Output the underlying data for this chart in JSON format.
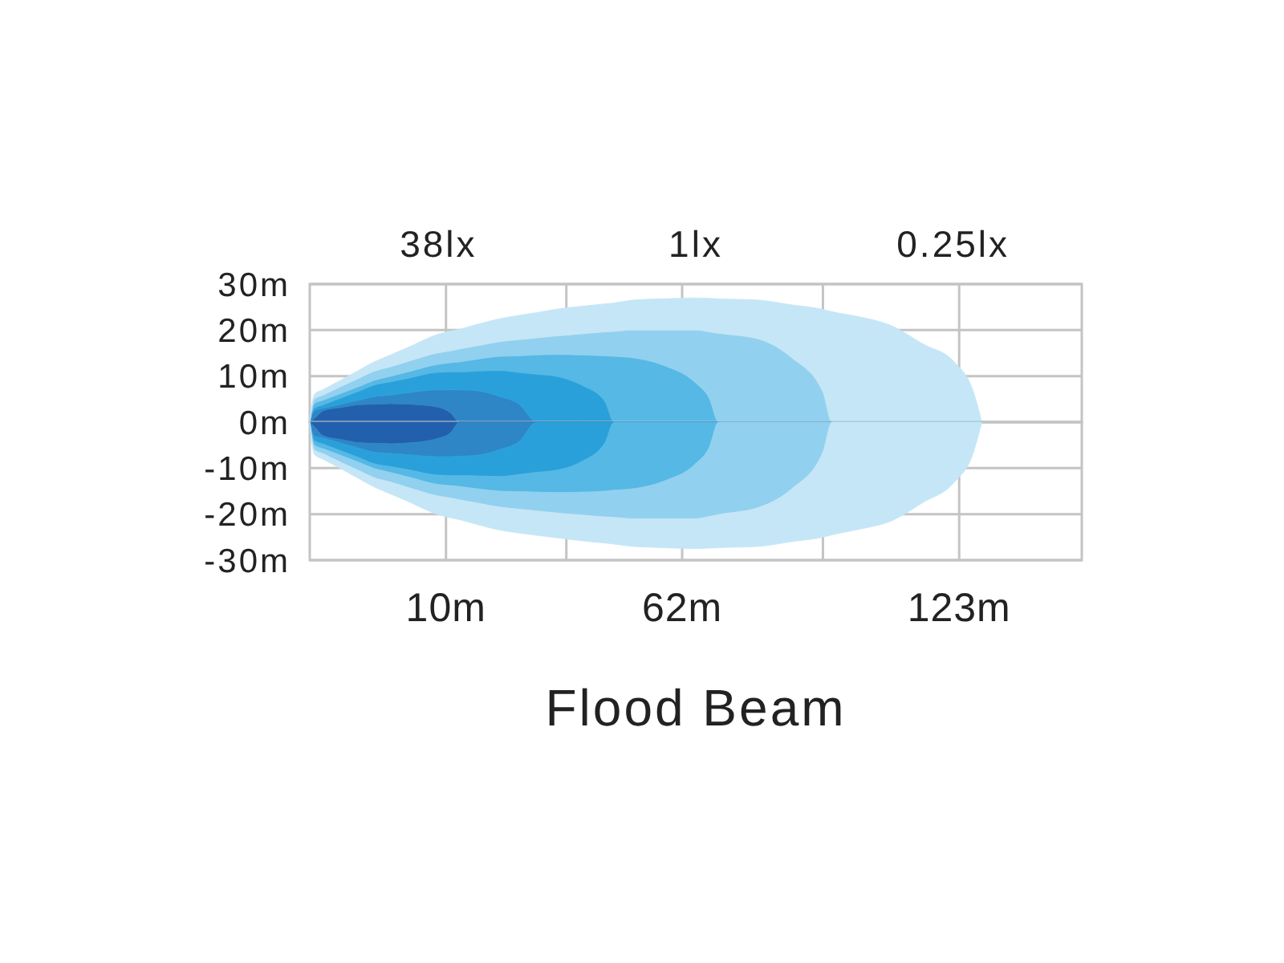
{
  "chart_data": [
    {
      "type": "area",
      "stacked": true,
      "tick_labels": "y",
      "xlim": [
        -20,
        150
      ],
      "xticks": [
        {
          "value": 10,
          "label": null
        },
        {
          "value": 36.5,
          "label": null
        },
        {
          "value": 62,
          "label": null
        },
        {
          "value": 93,
          "label": null
        },
        {
          "value": 123,
          "label": null
        }
      ],
      "ylim": [
        0,
        30
      ],
      "yticks": [
        {
          "value": 0,
          "label": "0m"
        },
        {
          "value": 10,
          "label": "10m"
        },
        {
          "value": 20,
          "label": "20m"
        },
        {
          "value": 30,
          "label": "30m"
        }
      ],
      "grid": true,
      "annotations": [
        "38lx",
        "1lx",
        "0.25lx"
      ],
      "x": [
        -20,
        -19,
        -17,
        -13,
        -9,
        -6,
        -2,
        2,
        8,
        11,
        13,
        17,
        22,
        26,
        30,
        34,
        40,
        45,
        47,
        51,
        58,
        65,
        68,
        70,
        79,
        86,
        93,
        95,
        101,
        108,
        115,
        122,
        126,
        128
      ],
      "series": [
        {
          "color": "#2260ad",
          "values": [
            0,
            0.8,
            2.5,
            3.2,
            3.8,
            3.9,
            4,
            3.9,
            3.3,
            2,
            0,
            0,
            0,
            0,
            0,
            0,
            0,
            0,
            0,
            0,
            0,
            0,
            0,
            0,
            0,
            0,
            0,
            0,
            0,
            0,
            0,
            0,
            0,
            0
          ]
        },
        {
          "color": "#2e86c7",
          "values": [
            0,
            1.7,
            0.5,
            0.7,
            1,
            1.6,
            1.9,
            2.5,
            3.7,
            5,
            7,
            6.8,
            5.5,
            4,
            0,
            0,
            0,
            0,
            0,
            0,
            0,
            0,
            0,
            0,
            0,
            0,
            0,
            0,
            0,
            0,
            0,
            0,
            0,
            0
          ]
        },
        {
          "color": "#2aa0da",
          "values": [
            0,
            0.5,
            0.8,
            1.4,
            2,
            2.5,
            2.9,
            3.2,
            3.8,
            3.9,
            3.9,
            4.3,
            5.7,
            6.8,
            10.4,
            10,
            8,
            4.5,
            0,
            0,
            0,
            0,
            0,
            0,
            0,
            0,
            0,
            0,
            0,
            0,
            0,
            0,
            0,
            0
          ]
        },
        {
          "color": "#55b8e5",
          "values": [
            0,
            1,
            1,
            1,
            1,
            1,
            1.2,
            1.4,
            1.7,
            2,
            2.2,
            2.6,
            3.1,
            3.6,
            4.2,
            4.7,
            6.6,
            9.9,
            14.3,
            14,
            12.3,
            8.5,
            5.1,
            0,
            0,
            0,
            0,
            0,
            0,
            0,
            0,
            0,
            0,
            0
          ]
        },
        {
          "color": "#92d0ef",
          "values": [
            0,
            1,
            1.1,
            1.5,
            1.8,
            2,
            2.1,
            2.3,
            2.5,
            2.6,
            2.8,
            2.9,
            3.2,
            3.5,
            3.7,
            4,
            4.6,
            5.2,
            5.4,
            6,
            7.7,
            11.5,
            14.5,
            19.3,
            18,
            14.1,
            6.5,
            0,
            0,
            0,
            0,
            0,
            0,
            0
          ]
        },
        {
          "color": "#c5e6f6",
          "values": [
            0,
            1,
            1.2,
            1.4,
            1.8,
            2,
            2.6,
            3.1,
            4,
            4.3,
            4.3,
            4.7,
            5,
            5.3,
            5.5,
            5.8,
            6,
            6.1,
            6.2,
            6.5,
            6.8,
            7,
            7.3,
            7.5,
            8.5,
            11.4,
            18,
            24,
            22.9,
            21,
            17,
            13,
            7,
            0
          ]
        }
      ]
    },
    {
      "type": "area",
      "stacked": true,
      "title": "Flood Beam",
      "xlim": [
        -20,
        150
      ],
      "xticks": [
        {
          "value": 10,
          "label": "10m"
        },
        {
          "value": 36.5,
          "label": null
        },
        {
          "value": 62,
          "label": "62m"
        },
        {
          "value": 93,
          "label": null
        },
        {
          "value": 123,
          "label": "123m"
        }
      ],
      "ylim": [
        -30,
        0
      ],
      "yticks": [
        {
          "value": -30,
          "label": "-30m"
        },
        {
          "value": -20,
          "label": "-20m"
        },
        {
          "value": -10,
          "label": "-10m"
        }
      ],
      "grid": true,
      "x": [
        -20,
        -19,
        -17,
        -13,
        -9,
        -6,
        -2,
        2,
        8,
        11,
        13,
        17,
        22,
        26,
        30,
        34,
        40,
        45,
        47,
        51,
        58,
        65,
        68,
        70,
        79,
        86,
        93,
        95,
        101,
        108,
        115,
        122,
        126,
        128
      ],
      "series": [
        {
          "color": "#2260ad",
          "values": [
            0,
            -1,
            -3,
            -3.8,
            -4.5,
            -4.6,
            -4.7,
            -4.5,
            -3.6,
            -2.3,
            0,
            0,
            0,
            0,
            0,
            0,
            0,
            0,
            0,
            0,
            0,
            0,
            0,
            0,
            0,
            0,
            0,
            0,
            0,
            0,
            0,
            0,
            0,
            0
          ]
        },
        {
          "color": "#2e86c7",
          "values": [
            0,
            -2,
            -0.5,
            -0.8,
            -1.2,
            -1.9,
            -2.1,
            -2.6,
            -3.9,
            -5.2,
            -7.4,
            -7.2,
            -5.9,
            -4.3,
            0,
            0,
            0,
            0,
            0,
            0,
            0,
            0,
            0,
            0,
            0,
            0,
            0,
            0,
            0,
            0,
            0,
            0,
            0,
            0
          ]
        },
        {
          "color": "#2aa0da",
          "values": [
            0,
            -1,
            -1.3,
            -1.7,
            -2.1,
            -2.5,
            -2.9,
            -3.3,
            -4,
            -4.1,
            -4.2,
            -4.5,
            -5.9,
            -7.1,
            -10.9,
            -10.5,
            -8.5,
            -4.5,
            0,
            0,
            0,
            0,
            0,
            0,
            0,
            0,
            0,
            0,
            0,
            0,
            0,
            0,
            0,
            0
          ]
        },
        {
          "color": "#55b8e5",
          "values": [
            0,
            -1,
            -1,
            -1,
            -1,
            -1,
            -1.3,
            -1.6,
            -2,
            -2.2,
            -2.4,
            -2.8,
            -3.2,
            -3.7,
            -4.3,
            -4.8,
            -6.7,
            -10.5,
            -14.8,
            -14.5,
            -12.8,
            -9,
            -5.4,
            0,
            0,
            0,
            0,
            0,
            0,
            0,
            0,
            0,
            0,
            0
          ]
        },
        {
          "color": "#92d0ef",
          "values": [
            0,
            -1,
            -1.1,
            -1.5,
            -1.8,
            -2,
            -2.1,
            -2.3,
            -2.5,
            -2.7,
            -2.9,
            -3.1,
            -3.5,
            -3.8,
            -4.1,
            -4.4,
            -5,
            -5.6,
            -5.9,
            -6.5,
            -8.2,
            -12,
            -15.1,
            -20.1,
            -18.5,
            -14.6,
            -6.5,
            0,
            0,
            0,
            0,
            0,
            0,
            0
          ]
        },
        {
          "color": "#c5e6f6",
          "values": [
            0,
            -1,
            -1.2,
            -1.4,
            -1.8,
            -2,
            -2.6,
            -3.1,
            -4,
            -4.3,
            -4.3,
            -4.7,
            -5,
            -5.2,
            -5.3,
            -5.4,
            -5.6,
            -5.7,
            -5.8,
            -6,
            -6.3,
            -6.5,
            -6.9,
            -7.2,
            -8.5,
            -11.4,
            -18.5,
            -24.5,
            -23.3,
            -21.5,
            -17.5,
            -13,
            -7,
            0
          ]
        }
      ]
    }
  ]
}
